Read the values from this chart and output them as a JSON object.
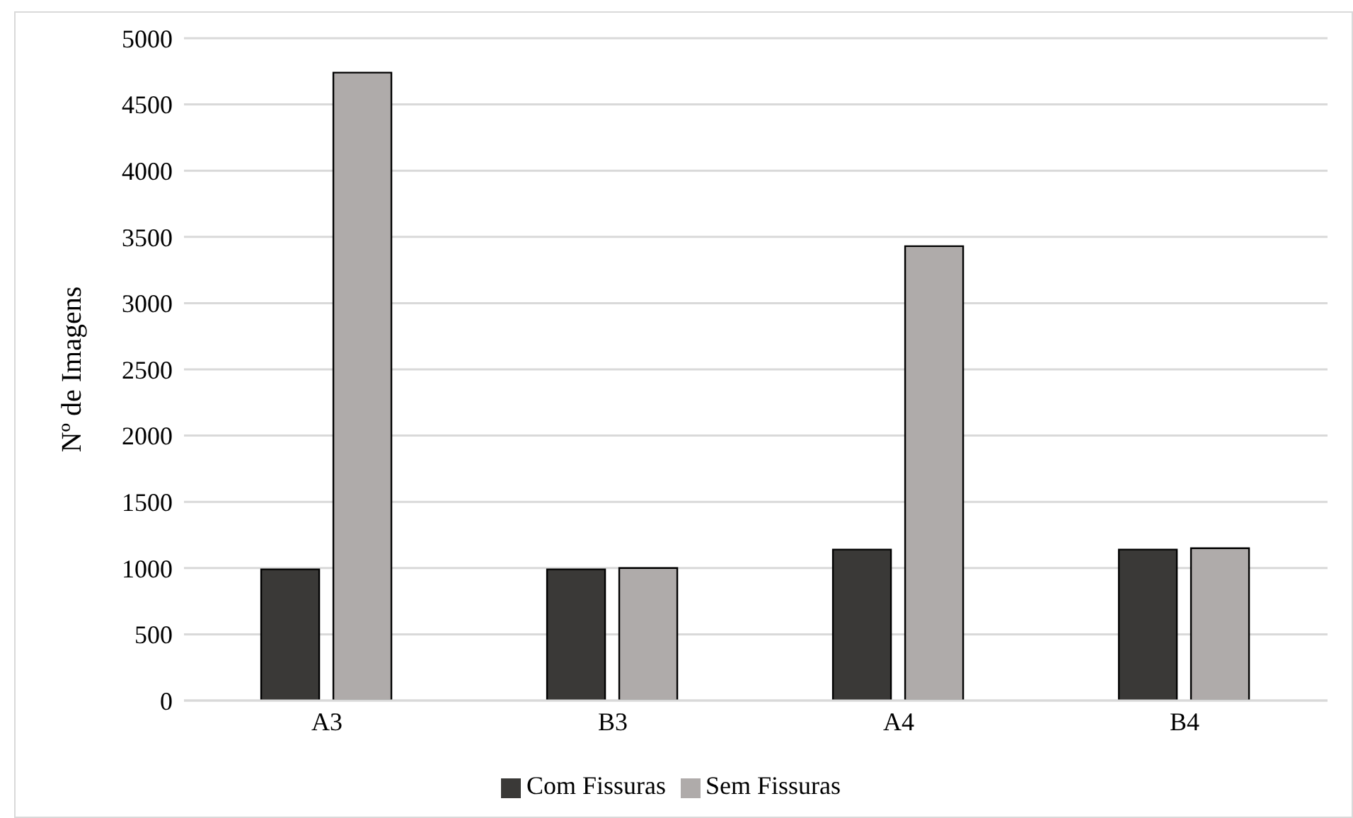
{
  "chart_data": {
    "type": "bar",
    "ylabel": "Nº de Imagens",
    "categories": [
      "A3",
      "B3",
      "A4",
      "B4"
    ],
    "series": [
      {
        "name": "Com Fissuras",
        "color": "#3a3937",
        "values": [
          990,
          990,
          1140,
          1140
        ]
      },
      {
        "name": "Sem Fissuras",
        "color": "#afabaa",
        "values": [
          4740,
          1000,
          3430,
          1150
        ]
      }
    ],
    "ylim": [
      0,
      5000
    ],
    "yticks": [
      0,
      500,
      1000,
      1500,
      2000,
      2500,
      3000,
      3500,
      4000,
      4500,
      5000
    ],
    "grid": "y",
    "legend": "bottom"
  }
}
